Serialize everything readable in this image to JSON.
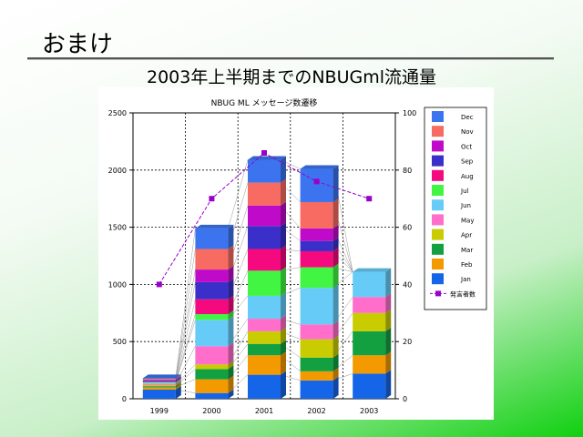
{
  "slide": {
    "title": "おまけ",
    "subtitle": "2003年上半期までのNBUGml流通量"
  },
  "chart_data": {
    "type": "bar",
    "stacked": true,
    "title": "NBUG ML メッセージ数遷移",
    "categories": [
      "1999",
      "2000",
      "2001",
      "2002",
      "2003"
    ],
    "ylim": [
      0,
      2500
    ],
    "y2lim": [
      0,
      100
    ],
    "yticks": [
      0,
      500,
      1000,
      1500,
      2000,
      2500
    ],
    "y2ticks": [
      0,
      20,
      40,
      60,
      80,
      100
    ],
    "grid": true,
    "legend_position": "right",
    "series": [
      {
        "name": "Jan",
        "color": "#1565e8",
        "values": [
          80,
          50,
          210,
          160,
          220
        ]
      },
      {
        "name": "Feb",
        "color": "#f39a00",
        "values": [
          20,
          120,
          170,
          80,
          160
        ]
      },
      {
        "name": "Mar",
        "color": "#13a040",
        "values": [
          10,
          90,
          100,
          120,
          210
        ]
      },
      {
        "name": "Apr",
        "color": "#c8cc00",
        "values": [
          10,
          40,
          110,
          160,
          160
        ]
      },
      {
        "name": "May",
        "color": "#ff6ecb",
        "values": [
          10,
          160,
          110,
          130,
          140
        ]
      },
      {
        "name": "Jun",
        "color": "#66ccf7",
        "values": [
          10,
          230,
          200,
          320,
          220
        ]
      },
      {
        "name": "Jul",
        "color": "#42f542",
        "values": [
          5,
          50,
          220,
          180,
          0
        ]
      },
      {
        "name": "Aug",
        "color": "#f5097f",
        "values": [
          5,
          130,
          190,
          140,
          0
        ]
      },
      {
        "name": "Sep",
        "color": "#3b2fc9",
        "values": [
          10,
          150,
          200,
          90,
          0
        ]
      },
      {
        "name": "Oct",
        "color": "#c00ac9",
        "values": [
          5,
          110,
          180,
          110,
          0
        ]
      },
      {
        "name": "Nov",
        "color": "#f76b63",
        "values": [
          10,
          180,
          200,
          230,
          0
        ]
      },
      {
        "name": "Dec",
        "color": "#3c74f0",
        "values": [
          5,
          180,
          200,
          290,
          0
        ]
      }
    ],
    "line_series": {
      "name": "発言者数",
      "color": "#9900cc",
      "axis": "right",
      "values": [
        40,
        70,
        86,
        76,
        70
      ]
    }
  }
}
